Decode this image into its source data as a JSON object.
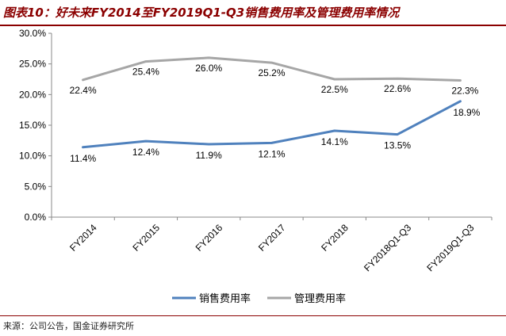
{
  "title": "图表10：好未来FY2014至FY2019Q1-Q3销售费用率及管理费用率情况",
  "source": "来源：公司公告，国金证券研究所",
  "colors": {
    "sales": "#4f81bd",
    "admin": "#a6a6a6",
    "title": "#8b0000"
  },
  "chart_data": {
    "type": "line",
    "categories": [
      "FY2014",
      "FY2015",
      "FY2016",
      "FY2017",
      "FY2018",
      "FY2018Q1-Q3",
      "FY2019Q1-Q3"
    ],
    "series": [
      {
        "name": "销售费用率",
        "values": [
          11.4,
          12.4,
          11.9,
          12.1,
          14.1,
          13.5,
          18.9
        ],
        "labels": [
          "11.4%",
          "12.4%",
          "11.9%",
          "12.1%",
          "14.1%",
          "13.5%",
          "18.9%"
        ]
      },
      {
        "name": "管理费用率",
        "values": [
          22.4,
          25.4,
          26.0,
          25.2,
          22.5,
          22.6,
          22.3
        ],
        "labels": [
          "22.4%",
          "25.4%",
          "26.0%",
          "25.2%",
          "22.5%",
          "22.6%",
          "22.3%"
        ]
      }
    ],
    "yticks": [
      "0.0%",
      "5.0%",
      "10.0%",
      "15.0%",
      "20.0%",
      "25.0%",
      "30.0%"
    ],
    "ylim": [
      0,
      30
    ],
    "legend": "bottom",
    "grid": false
  }
}
